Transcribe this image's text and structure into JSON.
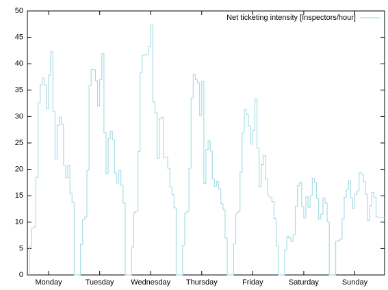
{
  "chart_data": {
    "type": "step",
    "series": [
      {
        "name": "Net ticketing intensity [Inspectors/hour]",
        "color": "#a8dde6",
        "x": [
          3,
          4,
          5,
          6,
          7,
          8,
          9,
          10,
          11,
          12,
          13,
          14,
          15,
          16,
          17,
          18,
          19,
          20,
          21,
          22,
          23,
          24,
          27,
          28,
          29,
          30,
          31,
          32,
          33,
          34,
          35,
          36,
          37,
          38,
          39,
          40,
          41,
          42,
          43,
          44,
          45,
          46,
          47,
          48,
          51,
          52,
          53,
          54,
          55,
          56,
          57,
          58,
          59,
          60,
          61,
          62,
          63,
          64,
          65,
          66,
          67,
          68,
          69,
          70,
          71,
          72,
          75,
          76,
          77,
          78,
          79,
          80,
          81,
          82,
          83,
          84,
          85,
          86,
          87,
          88,
          89,
          90,
          91,
          92,
          93,
          94,
          95,
          96,
          99,
          100,
          101,
          102,
          103,
          104,
          105,
          106,
          107,
          108,
          109,
          110,
          111,
          112,
          113,
          114,
          115,
          116,
          117,
          118,
          119,
          120,
          123,
          124,
          125,
          126,
          127,
          128,
          129,
          130,
          131,
          132,
          133,
          134,
          135,
          136,
          137,
          138,
          139,
          140,
          141,
          142,
          143,
          144,
          147,
          148,
          149,
          150,
          151,
          152,
          153,
          154,
          155,
          156,
          157,
          158,
          159,
          160,
          161,
          162,
          163,
          164,
          165,
          166,
          167
        ],
        "values": [
          5.3,
          8.8,
          9.1,
          18.5,
          32.6,
          36,
          37.3,
          36,
          31.5,
          37.8,
          42.3,
          31,
          22,
          28.3,
          29.9,
          28.5,
          20.8,
          18.4,
          20.8,
          15.5,
          13.8,
          0,
          5.8,
          10.5,
          11,
          19.8,
          35.9,
          38.9,
          38.9,
          36.8,
          32,
          37,
          41.9,
          27,
          19.2,
          25.8,
          27.2,
          25.6,
          19.3,
          17.4,
          19.8,
          17,
          13.6,
          0,
          5.3,
          11.8,
          12.1,
          23.4,
          38.3,
          41.6,
          41.7,
          41.7,
          43.3,
          47.3,
          32.8,
          30.7,
          22.1,
          29.6,
          29.9,
          22.3,
          22.3,
          20.2,
          16.7,
          15.2,
          12.7,
          0,
          5.6,
          11.7,
          12,
          20.2,
          33.5,
          38,
          37,
          36.4,
          30.2,
          36.7,
          17.3,
          23.7,
          25.4,
          23.5,
          18.2,
          16.8,
          17.7,
          16.3,
          13.5,
          12.4,
          7,
          0,
          5.9,
          11.6,
          12,
          19.4,
          26.9,
          31.4,
          30.4,
          28.2,
          24.8,
          27.4,
          33.3,
          24,
          16.7,
          20.9,
          22.6,
          18.2,
          15,
          14.6,
          13.9,
          10.7,
          5.6,
          0,
          4.7,
          7.3,
          7,
          6.3,
          7.6,
          13,
          16.9,
          17.5,
          12.9,
          10.8,
          14.8,
          12.8,
          15,
          18.3,
          17.5,
          14.5,
          10.6,
          11.5,
          14.6,
          13.6,
          10.1,
          0,
          6.4,
          6.5,
          6.8,
          10.6,
          14.7,
          16.2,
          17.9,
          14.6,
          12.6,
          15.3,
          15.9,
          19.4,
          19.1,
          17.7,
          15.3,
          10.3,
          13.1,
          15.6,
          14.7,
          11.0,
          10.9
        ]
      }
    ],
    "xlim": [
      2,
      170
    ],
    "xticks": [
      {
        "value": 12,
        "label": "Monday"
      },
      {
        "value": 36,
        "label": "Tuesday"
      },
      {
        "value": 60,
        "label": "Wednesday"
      },
      {
        "value": 84,
        "label": "Thursday"
      },
      {
        "value": 108,
        "label": "Friday"
      },
      {
        "value": 132,
        "label": "Saturday"
      },
      {
        "value": 156,
        "label": "Sunday"
      }
    ],
    "ylim": [
      0,
      50
    ],
    "yticks": [
      0,
      5,
      10,
      15,
      20,
      25,
      30,
      35,
      40,
      45,
      50
    ],
    "legend": "top-right"
  }
}
